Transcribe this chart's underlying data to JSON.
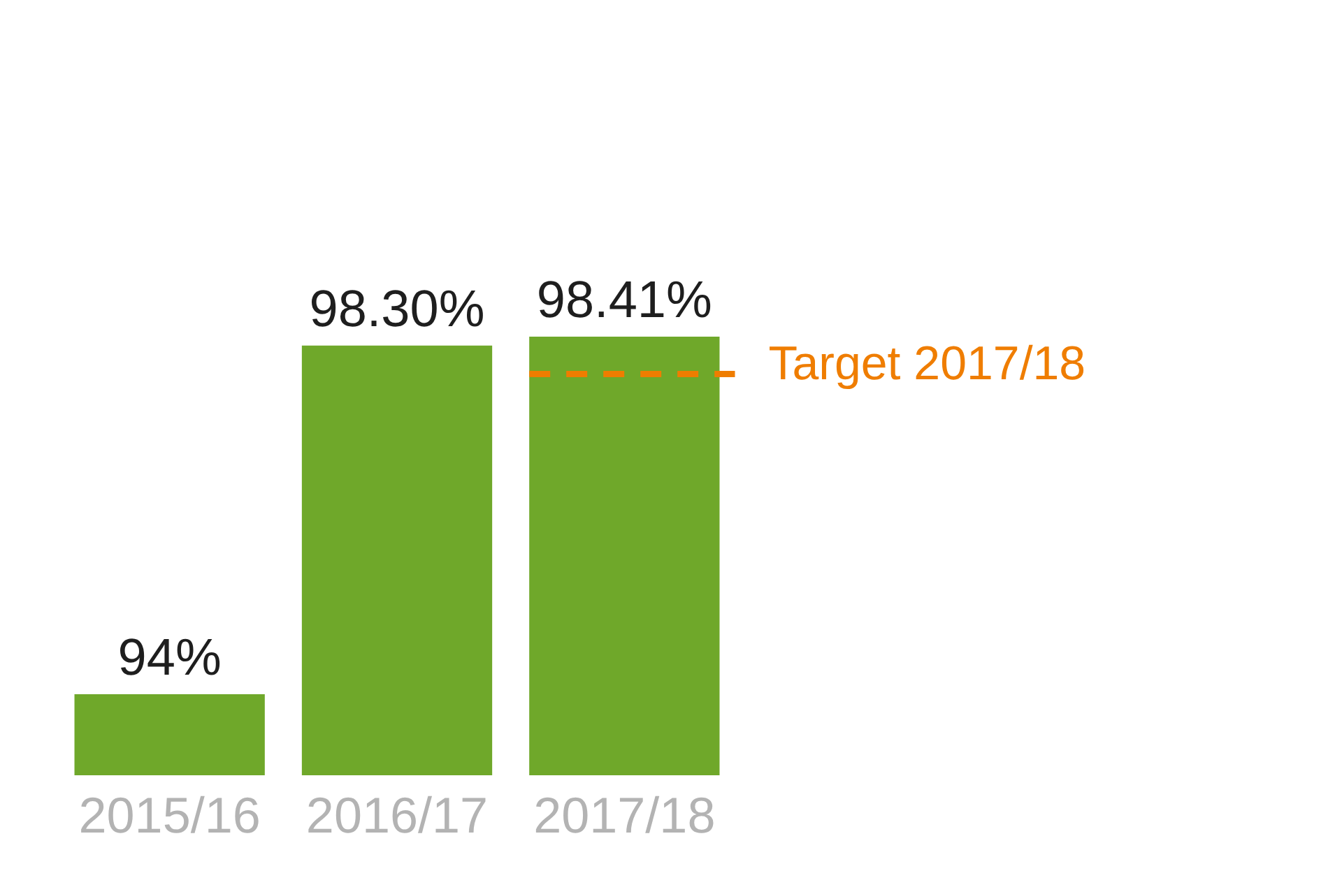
{
  "chart_data": {
    "type": "bar",
    "categories": [
      "2015/16",
      "2016/17",
      "2017/18"
    ],
    "values": [
      94,
      98.3,
      98.41
    ],
    "color": "#6fa82a",
    "ylim": [
      93,
      98.41
    ],
    "value_labels": [
      "94%",
      "98.30%",
      "98.41%"
    ],
    "tick_labels": "x",
    "ref_lines": [
      {
        "axis": "y",
        "value": 97.95,
        "label": "Target 2017/18",
        "color": "#ef7d00",
        "line_style": "dashed"
      }
    ]
  }
}
